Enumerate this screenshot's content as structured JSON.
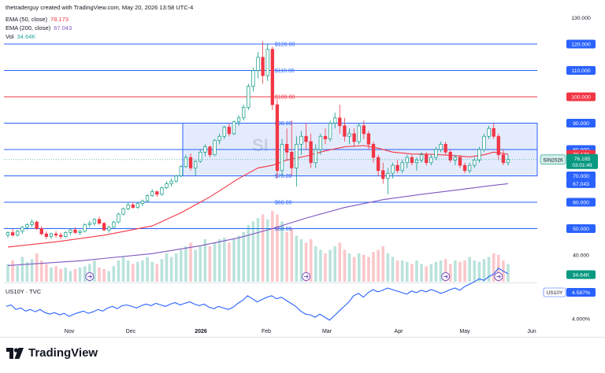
{
  "header": {
    "attribution": "thetraderguy created with TradingView.com, May 20, 2026 13:58 UTC-4"
  },
  "indicators": [
    {
      "label": "EMA (50, close)",
      "value": "78.173",
      "color": "#f23645"
    },
    {
      "label": "EMA (200, close)",
      "value": "67.043",
      "color": "#7e57c2"
    },
    {
      "label": "Vol",
      "value": "34.64K",
      "color": "#26a69a"
    }
  ],
  "sub_indicator": {
    "label": "US10Y · TVC"
  },
  "brand": {
    "name": "TradingView"
  },
  "colors": {
    "up": "#089981",
    "down": "#f23645",
    "ema50": "#f23645",
    "ema200": "#7e57c2",
    "level": "#2962ff",
    "box_fill": "#dbe4fb",
    "us10y": "#2962ff"
  },
  "chart_data": [
    {
      "type": "candlestick",
      "symbol": "SIN2026",
      "price_axis_ticks": [
        "130.000",
        "120.000",
        "110.000",
        "100.000",
        "90.000",
        "80.000",
        "70.000",
        "60.000",
        "50.000",
        "40.000"
      ],
      "price_ticks_values": [
        130,
        120,
        110,
        100,
        90,
        80,
        70,
        60,
        50,
        40
      ],
      "time_axis_labels": [
        "Nov",
        "Dec",
        "2026",
        "Feb",
        "Mar",
        "Apr",
        "May",
        "Jun"
      ],
      "horizontal_levels": [
        {
          "value": 120,
          "label": "$120.00",
          "axis_label": "120.000",
          "color": "#2962ff"
        },
        {
          "value": 110,
          "label": "$110.00",
          "axis_label": "110.000",
          "color": "#2962ff"
        },
        {
          "value": 100,
          "label": "$100.00",
          "axis_label": "100.000",
          "color": "#f23645"
        },
        {
          "value": 90,
          "label": "$90.00",
          "axis_label": "90.000",
          "color": "#2962ff"
        },
        {
          "value": 80,
          "label": "",
          "axis_label": "80.000",
          "color": "#2962ff"
        },
        {
          "value": 70,
          "label": "$70.00",
          "axis_label": "70.000",
          "color": "#2962ff"
        },
        {
          "value": 60,
          "label": "$60.00",
          "axis_label": "60.000",
          "color": "#2962ff"
        },
        {
          "value": 50,
          "label": "$50.00",
          "axis_label": "50.000",
          "color": "#2962ff"
        }
      ],
      "range_box": {
        "top": 90,
        "bottom": 70
      },
      "price_badges": [
        {
          "text": "78.173",
          "color": "#f23645"
        },
        {
          "text": "76.185",
          "subtext": "03:01:49",
          "color": "#089981"
        },
        {
          "text": "67.043",
          "color": "#2962ff"
        },
        {
          "text": "34.64K",
          "color": "#089981"
        }
      ],
      "last_price": 76.185,
      "countdown": "03:01:49",
      "ema50_last": 78.173,
      "ema200_last": 67.043,
      "volume_last": "34.64K",
      "candles": [
        [
          47.5,
          49,
          46.5,
          48.5
        ],
        [
          48.5,
          50,
          47,
          47.5
        ],
        [
          47.5,
          49.5,
          47,
          49
        ],
        [
          49,
          51,
          48,
          50.5
        ],
        [
          50.5,
          52,
          49.5,
          51.5
        ],
        [
          51.5,
          53.5,
          50.5,
          52.5
        ],
        [
          52.5,
          53,
          49.5,
          50
        ],
        [
          50,
          51,
          47.5,
          48
        ],
        [
          48,
          49,
          46,
          47
        ],
        [
          47,
          48.5,
          46,
          48
        ],
        [
          48,
          49,
          46.5,
          47.5
        ],
        [
          47.5,
          48.5,
          46,
          47
        ],
        [
          47,
          49,
          46.5,
          48.5
        ],
        [
          48.5,
          50,
          47.5,
          49.5
        ],
        [
          49.5,
          50.5,
          48,
          48.5
        ],
        [
          48.5,
          49.5,
          47.5,
          49
        ],
        [
          49,
          52,
          48.5,
          51.5
        ],
        [
          51.5,
          53,
          50.5,
          52
        ],
        [
          52,
          54,
          51,
          53.5
        ],
        [
          53.5,
          54.5,
          51.5,
          52
        ],
        [
          52,
          52.5,
          49,
          49.5
        ],
        [
          49.5,
          51,
          48.5,
          50.5
        ],
        [
          50.5,
          53,
          50,
          52.5
        ],
        [
          52.5,
          56,
          52,
          55.5
        ],
        [
          55.5,
          58,
          55,
          57.5
        ],
        [
          57.5,
          60,
          57,
          59
        ],
        [
          59,
          60,
          57.5,
          58
        ],
        [
          58,
          60,
          57.5,
          59.5
        ],
        [
          59.5,
          61,
          58.5,
          60.5
        ],
        [
          60.5,
          63,
          60,
          62.5
        ],
        [
          62.5,
          65,
          62,
          64
        ],
        [
          64,
          64.5,
          62,
          63
        ],
        [
          63,
          66,
          62.5,
          65.5
        ],
        [
          65.5,
          68,
          65,
          67
        ],
        [
          67,
          69,
          66,
          68
        ],
        [
          68,
          70.5,
          67.5,
          70
        ],
        [
          70,
          74,
          69.5,
          73.5
        ],
        [
          73.5,
          78,
          73,
          77
        ],
        [
          77,
          78.5,
          72,
          73
        ],
        [
          73,
          76,
          70,
          75.5
        ],
        [
          75.5,
          80,
          75,
          79
        ],
        [
          79,
          82,
          77.5,
          81
        ],
        [
          81,
          81.5,
          77,
          78
        ],
        [
          78,
          84,
          77.5,
          83.5
        ],
        [
          83.5,
          86,
          82,
          85
        ],
        [
          85,
          89,
          84,
          88.5
        ],
        [
          88.5,
          90,
          85,
          86
        ],
        [
          86,
          91,
          85.5,
          90.5
        ],
        [
          90.5,
          93,
          89,
          92
        ],
        [
          92,
          97,
          91,
          96
        ],
        [
          96,
          105,
          95,
          104
        ],
        [
          104,
          111,
          102,
          110
        ],
        [
          110,
          117,
          107,
          115
        ],
        [
          115,
          121,
          105,
          108
        ],
        [
          108,
          120,
          106,
          118
        ],
        [
          118,
          119,
          95,
          97
        ],
        [
          97,
          99,
          69,
          72
        ],
        [
          72,
          84,
          70,
          82
        ],
        [
          82,
          88,
          76,
          79
        ],
        [
          79,
          91,
          70,
          73
        ],
        [
          73,
          85,
          66,
          82
        ],
        [
          82,
          87,
          78,
          85
        ],
        [
          85,
          90,
          80,
          83
        ],
        [
          83,
          86,
          73,
          75
        ],
        [
          75,
          82,
          73,
          80
        ],
        [
          80,
          86,
          78,
          85
        ],
        [
          85,
          88,
          82,
          84
        ],
        [
          84,
          91,
          83,
          90
        ],
        [
          90,
          94,
          88,
          92
        ],
        [
          92,
          97,
          86,
          89
        ],
        [
          89,
          92,
          83,
          85
        ],
        [
          85,
          88,
          82,
          86
        ],
        [
          86,
          88,
          81,
          83
        ],
        [
          83,
          90,
          82,
          89
        ],
        [
          89,
          91,
          84,
          86
        ],
        [
          86,
          87,
          80,
          82
        ],
        [
          82,
          83,
          75,
          77
        ],
        [
          77,
          78,
          70,
          72
        ],
        [
          72,
          75,
          67,
          69
        ],
        [
          69,
          73,
          63,
          71
        ],
        [
          71,
          75,
          69,
          74
        ],
        [
          74,
          76,
          71,
          72
        ],
        [
          72,
          76,
          71,
          75
        ],
        [
          75,
          78,
          73,
          77
        ],
        [
          77,
          78,
          74,
          75
        ],
        [
          75,
          77,
          72,
          76
        ],
        [
          76,
          79,
          75,
          78
        ],
        [
          78,
          79,
          74,
          75
        ],
        [
          75,
          78,
          74,
          77
        ],
        [
          77,
          81,
          76,
          80
        ],
        [
          80,
          83,
          79,
          82
        ],
        [
          82,
          83,
          78,
          79
        ],
        [
          79,
          80,
          75,
          76
        ],
        [
          76,
          78,
          74,
          77
        ],
        [
          77,
          78,
          73,
          74
        ],
        [
          74,
          75,
          71,
          72
        ],
        [
          72,
          75,
          71,
          74
        ],
        [
          74,
          77,
          73,
          76
        ],
        [
          76,
          81,
          75,
          80
        ],
        [
          80,
          86,
          79,
          85
        ],
        [
          85,
          89,
          84,
          88
        ],
        [
          88,
          90,
          84,
          85
        ],
        [
          85,
          86,
          76,
          78
        ],
        [
          78,
          80,
          74,
          75
        ],
        [
          75,
          78,
          74,
          76.185
        ]
      ],
      "ema50": [
        [
          0,
          43
        ],
        [
          10,
          45
        ],
        [
          20,
          47.5
        ],
        [
          30,
          51
        ],
        [
          36,
          56
        ],
        [
          42,
          62
        ],
        [
          48,
          69
        ],
        [
          52,
          73
        ],
        [
          55,
          74
        ],
        [
          58,
          76
        ],
        [
          62,
          77.5
        ],
        [
          66,
          79.5
        ],
        [
          70,
          81
        ],
        [
          74,
          81.5
        ],
        [
          77,
          80.5
        ],
        [
          80,
          79
        ],
        [
          84,
          78.3
        ],
        [
          88,
          78.2
        ],
        [
          92,
          77.8
        ],
        [
          96,
          77.2
        ],
        [
          99,
          78
        ],
        [
          101,
          79
        ],
        [
          103,
          78.5
        ],
        [
          104,
          78.173
        ]
      ],
      "ema200": [
        [
          0,
          36
        ],
        [
          15,
          37.8
        ],
        [
          30,
          40.5
        ],
        [
          40,
          43.5
        ],
        [
          48,
          46.5
        ],
        [
          55,
          50
        ],
        [
          62,
          54
        ],
        [
          70,
          58
        ],
        [
          78,
          61
        ],
        [
          86,
          63
        ],
        [
          94,
          64.8
        ],
        [
          100,
          66.2
        ],
        [
          104,
          67.043
        ]
      ],
      "volume": [
        0.25,
        0.3,
        0.22,
        0.35,
        0.28,
        0.32,
        0.4,
        0.3,
        0.25,
        0.2,
        0.22,
        0.18,
        0.2,
        0.15,
        0.18,
        0.2,
        0.22,
        0.25,
        0.3,
        0.2,
        0.18,
        0.15,
        0.22,
        0.3,
        0.35,
        0.3,
        0.25,
        0.28,
        0.3,
        0.35,
        0.28,
        0.25,
        0.32,
        0.4,
        0.35,
        0.4,
        0.45,
        0.5,
        0.55,
        0.45,
        0.5,
        0.6,
        0.5,
        0.55,
        0.6,
        0.62,
        0.55,
        0.6,
        0.65,
        0.7,
        0.8,
        0.85,
        0.9,
        0.95,
        0.88,
        1.0,
        0.95,
        0.85,
        0.7,
        0.75,
        0.65,
        0.6,
        0.55,
        0.6,
        0.5,
        0.45,
        0.4,
        0.45,
        0.5,
        0.55,
        0.45,
        0.4,
        0.35,
        0.4,
        0.38,
        0.35,
        0.42,
        0.45,
        0.5,
        0.4,
        0.35,
        0.3,
        0.3,
        0.28,
        0.25,
        0.3,
        0.25,
        0.22,
        0.25,
        0.28,
        0.3,
        0.32,
        0.25,
        0.3,
        0.28,
        0.3,
        0.35,
        0.3,
        0.28,
        0.32,
        0.35,
        0.4,
        0.38,
        0.3,
        0.25
      ],
      "event_markers": [
        {
          "candle_index": 17
        },
        {
          "candle_index": 62
        },
        {
          "candle_index": 91
        },
        {
          "candle_index": 102
        }
      ]
    },
    {
      "type": "line",
      "symbol": "US10Y",
      "label": "US10Y · TVC",
      "axis_ticks": [
        "4.587%",
        "4.000%"
      ],
      "axis_tick_values": [
        4.587,
        4.0
      ],
      "last_value": 4.587,
      "ylim": [
        3.88,
        4.67
      ],
      "values": [
        4.16,
        4.18,
        4.12,
        4.14,
        4.1,
        4.12,
        4.09,
        4.12,
        4.08,
        4.06,
        4.08,
        4.05,
        4.07,
        4.03,
        4.06,
        4.08,
        4.1,
        4.07,
        4.09,
        4.12,
        4.1,
        4.14,
        4.16,
        4.13,
        4.17,
        4.18,
        4.16,
        4.14,
        4.17,
        4.19,
        4.17,
        4.2,
        4.18,
        4.16,
        4.19,
        4.21,
        4.18,
        4.2,
        4.22,
        4.19,
        4.17,
        4.19,
        4.15,
        4.13,
        4.16,
        4.14,
        4.12,
        4.15,
        4.2,
        4.24,
        4.3,
        4.26,
        4.22,
        4.25,
        4.28,
        4.3,
        4.26,
        4.28,
        4.24,
        4.2,
        4.16,
        4.1,
        4.06,
        4.05,
        4.02,
        4.06,
        4.02,
        3.98,
        4.04,
        4.1,
        4.16,
        4.22,
        4.3,
        4.33,
        4.28,
        4.34,
        4.38,
        4.35,
        4.37,
        4.4,
        4.38,
        4.36,
        4.34,
        4.32,
        4.36,
        4.34,
        4.37,
        4.35,
        4.38,
        4.36,
        4.33,
        4.35,
        4.38,
        4.4,
        4.37,
        4.42,
        4.45,
        4.48,
        4.52,
        4.5,
        4.55,
        4.58,
        4.66,
        4.62,
        4.587
      ]
    }
  ]
}
